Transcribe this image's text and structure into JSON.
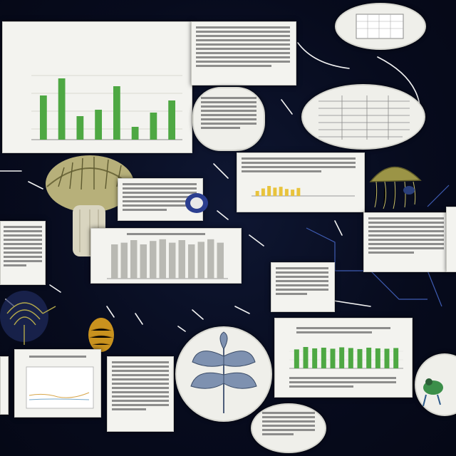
{
  "main_chart": {
    "title": "",
    "subtitle": "",
    "values": [
      62,
      86,
      33,
      42,
      75,
      18,
      38,
      55
    ],
    "ylim": [
      0,
      100
    ]
  },
  "small_bar_chart": {
    "values": [
      40,
      42,
      45,
      40,
      44,
      46,
      42,
      45,
      40,
      43,
      46,
      42
    ]
  },
  "green_bar_chart": {
    "values": [
      55,
      62,
      58,
      60,
      57,
      61,
      59,
      56,
      60,
      58,
      57,
      59
    ]
  },
  "yellow_bar_chart": {
    "values": [
      30,
      45,
      60,
      50,
      55,
      42,
      38,
      48
    ]
  },
  "colors": {
    "background": "#070b1d",
    "bar_green": "#4ea843",
    "bar_gray": "#b9b9b3",
    "bar_yellow": "#e8c33c",
    "card": "#f3f3ef",
    "arrow": "#f2f2f2"
  },
  "icons": {
    "mushroom": "mushroom-illustration",
    "jellyfish": "jellyfish-illustration",
    "leaf": "leaf-illustration",
    "seed": "seed-illustration",
    "specimen": "specimen-illustration",
    "frog": "frog-illustration"
  }
}
